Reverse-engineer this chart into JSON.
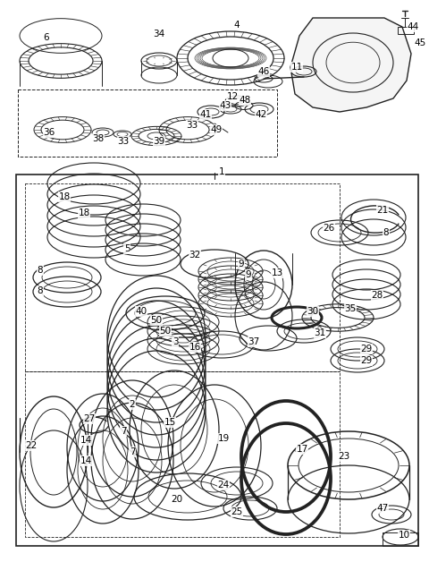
{
  "background_color": "#ffffff",
  "line_color": "#222222",
  "fig_width": 4.8,
  "fig_height": 6.47,
  "dpi": 100
}
